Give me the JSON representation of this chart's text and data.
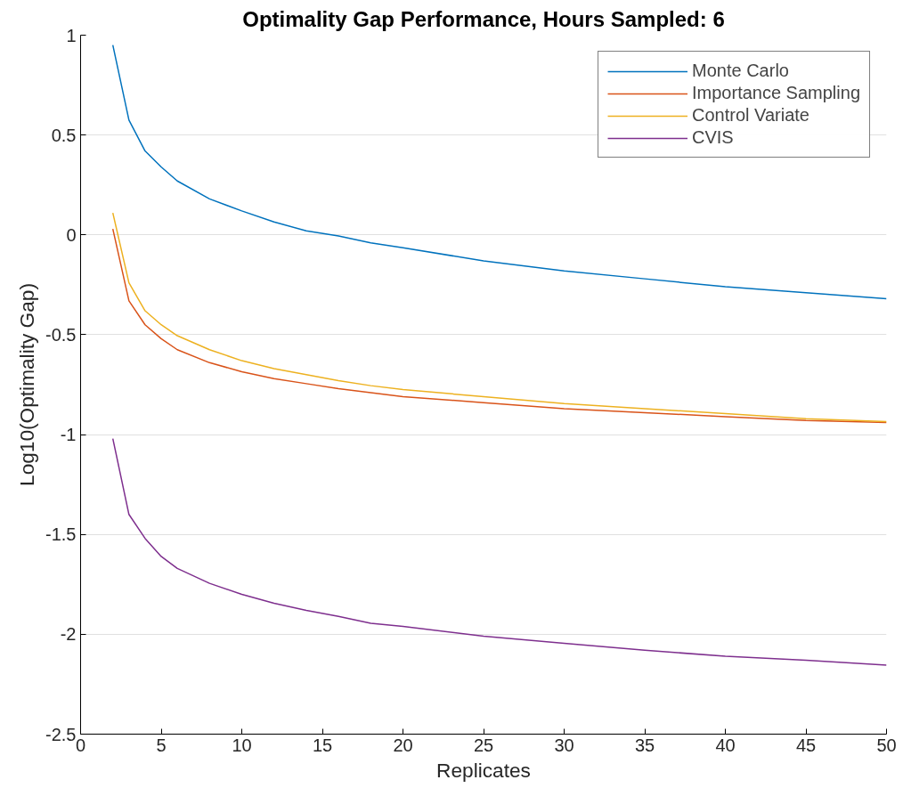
{
  "chart_data": {
    "type": "line",
    "title": "Optimality Gap Performance, Hours Sampled: 6",
    "xlabel": "Replicates",
    "ylabel": "Log10(Optimality Gap)",
    "x": [
      2,
      3,
      4,
      5,
      6,
      8,
      10,
      12,
      14,
      16,
      18,
      20,
      25,
      30,
      35,
      40,
      45,
      50
    ],
    "series": [
      {
        "name": "Monte Carlo",
        "color": "#0072bd",
        "values": [
          0.95,
          0.575,
          0.42,
          0.34,
          0.27,
          0.18,
          0.12,
          0.065,
          0.02,
          -0.005,
          -0.04,
          -0.065,
          -0.13,
          -0.18,
          -0.22,
          -0.26,
          -0.29,
          -0.32
        ]
      },
      {
        "name": "Importance Sampling",
        "color": "#d95319",
        "values": [
          0.03,
          -0.33,
          -0.45,
          -0.52,
          -0.575,
          -0.64,
          -0.685,
          -0.72,
          -0.745,
          -0.77,
          -0.79,
          -0.81,
          -0.84,
          -0.87,
          -0.89,
          -0.91,
          -0.93,
          -0.94
        ]
      },
      {
        "name": "Control Variate",
        "color": "#edb120",
        "values": [
          0.11,
          -0.24,
          -0.38,
          -0.45,
          -0.505,
          -0.575,
          -0.63,
          -0.67,
          -0.7,
          -0.73,
          -0.755,
          -0.775,
          -0.81,
          -0.845,
          -0.87,
          -0.895,
          -0.92,
          -0.935
        ]
      },
      {
        "name": "CVIS",
        "color": "#7e2f8e",
        "values": [
          -1.02,
          -1.4,
          -1.52,
          -1.61,
          -1.67,
          -1.745,
          -1.8,
          -1.845,
          -1.88,
          -1.91,
          -1.945,
          -1.96,
          -2.01,
          -2.045,
          -2.08,
          -2.11,
          -2.13,
          -2.155
        ]
      }
    ],
    "xlim": [
      0,
      50
    ],
    "xticks": [
      0,
      5,
      10,
      15,
      20,
      25,
      30,
      35,
      40,
      45,
      50
    ],
    "ylim": [
      -2.5,
      1
    ],
    "yticks": [
      -2.5,
      -2,
      -1.5,
      -1,
      -0.5,
      0,
      0.5,
      1
    ],
    "grid": "y",
    "legend": "top right",
    "marker": "none",
    "line_style": "solid"
  }
}
